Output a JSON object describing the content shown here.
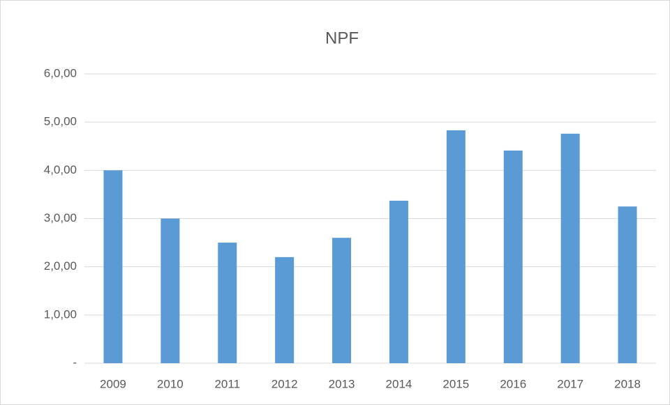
{
  "chart_data": {
    "type": "bar",
    "title": "NPF",
    "categories": [
      "2009",
      "2010",
      "2011",
      "2012",
      "2013",
      "2014",
      "2015",
      "2016",
      "2017",
      "2018"
    ],
    "values": [
      4.0,
      3.0,
      2.5,
      2.2,
      2.6,
      3.37,
      4.83,
      4.41,
      4.76,
      3.25
    ],
    "color": "#5b9bd5",
    "ylim": [
      0,
      6
    ],
    "yticks": [
      {
        "value": 0,
        "label": "-"
      },
      {
        "value": 1,
        "label": "1,0,00"
      },
      {
        "value": 2,
        "label": "2,0,00"
      },
      {
        "value": 3,
        "label": "3,0,00"
      },
      {
        "value": 4,
        "label": "4,0,00"
      },
      {
        "value": 5,
        "label": "5,0,00"
      },
      {
        "value": 6,
        "label": "6,0,00"
      }
    ],
    "grid": true
  }
}
